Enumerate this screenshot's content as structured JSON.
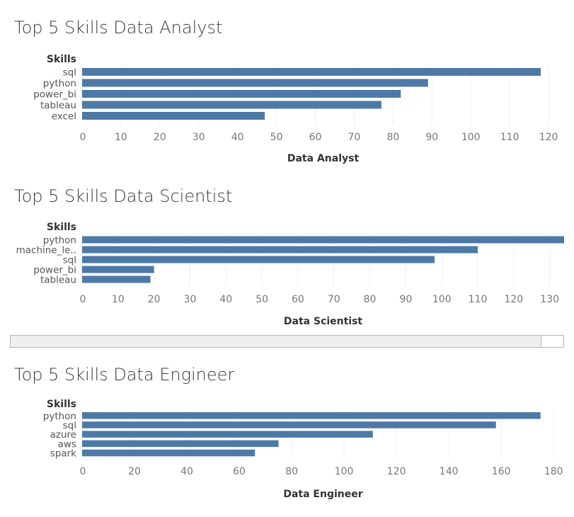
{
  "colors": {
    "bar": "#4e79a7",
    "grid": "#eeeeee",
    "axis_text": "#777777",
    "label_text": "#555555",
    "header_text": "#333333"
  },
  "scrollbar": {
    "position_fraction": 0.96
  },
  "chart_data": [
    {
      "type": "bar",
      "orientation": "horizontal",
      "title": "Top 5 Skills Data Analyst",
      "ylabel": "Skills",
      "xlabel": "Data Analyst",
      "categories": [
        "sql",
        "python",
        "power_bi",
        "tableau",
        "excel"
      ],
      "values": [
        118,
        89,
        82,
        77,
        47
      ],
      "xlim": [
        0,
        124
      ],
      "xticks": [
        0,
        10,
        20,
        30,
        40,
        50,
        60,
        70,
        80,
        90,
        100,
        110,
        120
      ],
      "grid": true
    },
    {
      "type": "bar",
      "orientation": "horizontal",
      "title": "Top 5 Skills Data Scientist",
      "ylabel": "Skills",
      "xlabel": "Data Scientist",
      "categories": [
        "python",
        "machine_le..",
        "sql",
        "power_bi",
        "tableau"
      ],
      "values": [
        140,
        110,
        98,
        20,
        19
      ],
      "xlim": [
        0,
        134
      ],
      "xticks": [
        0,
        10,
        20,
        30,
        40,
        50,
        60,
        70,
        80,
        90,
        100,
        110,
        120,
        130
      ],
      "grid": true
    },
    {
      "type": "bar",
      "orientation": "horizontal",
      "title": "Top 5 Skills Data Engineer",
      "ylabel": "Skills",
      "xlabel": "Data Engineer",
      "categories": [
        "python",
        "sql",
        "azure",
        "aws",
        "spark"
      ],
      "values": [
        175,
        158,
        111,
        75,
        66
      ],
      "xlim": [
        0,
        184
      ],
      "xticks": [
        0,
        20,
        40,
        60,
        80,
        100,
        120,
        140,
        160,
        180
      ],
      "grid": true
    }
  ]
}
